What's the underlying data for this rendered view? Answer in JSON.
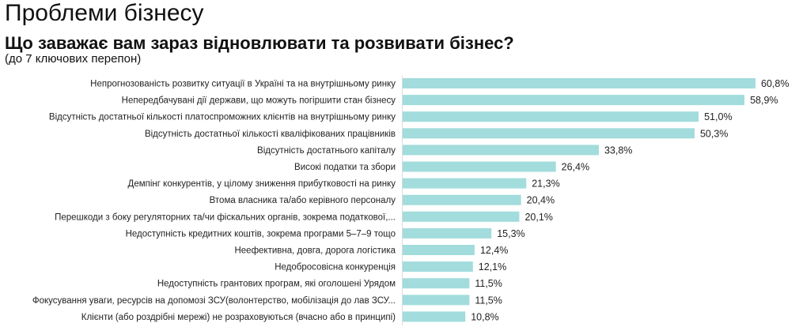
{
  "title": "Проблеми бізнесу",
  "subtitle": "Що заважає вам зараз відновлювати та розвивати бізнес?",
  "note": "(до 7 ключових перепон)",
  "chart_data": {
    "type": "bar",
    "orientation": "horizontal",
    "title": "Що заважає вам зараз відновлювати та розвивати бізнес?",
    "bar_color": "#a2dcdc",
    "grid": false,
    "xlim": [
      0,
      65
    ],
    "categories": [
      "Непрогнозованість розвитку ситуації в Україні та на внутрішньому ринку",
      "Непередбачувані дії держави, що можуть погіршити стан бізнесу",
      "Відсутність достатньої кількості платоспроможних клієнтів на внутрішньому ринку",
      "Відсутність достатньої кількості кваліфікованих працівників",
      "Відсутність достатнього капіталу",
      "Високі податки та збори",
      "Демпінг конкурентів, у цілому зниження прибутковості на ринку",
      "Втома власника та/або керівного персоналу",
      "Перешкоди з боку регуляторних та/чи фіскальних органів, зокрема податкової,...",
      "Недоступність кредитних коштів, зокрема програми 5–7–9 тощо",
      "Неефективна, довга, дорога логістика",
      "Недобросовісна конкуренція",
      "Недоступність грантових програм, які оголошені Урядом",
      "Фокусування уваги, ресурсів на допомозі ЗСУ(волонтерство, мобілізація до лав ЗСУ...",
      "Клієнти (або роздрібні мережі) не розраховуються (вчасно або в принципі)"
    ],
    "values": [
      60.8,
      58.9,
      51.0,
      50.3,
      33.8,
      26.4,
      21.3,
      20.4,
      20.1,
      15.3,
      12.4,
      12.1,
      11.5,
      11.5,
      10.8
    ],
    "data_labels": [
      "60,8%",
      "58,9%",
      "51,0%",
      "50,3%",
      "33,8%",
      "26,4%",
      "21,3%",
      "20,4%",
      "20,1%",
      "15,3%",
      "12,4%",
      "12,1%",
      "11,5%",
      "11,5%",
      "10,8%"
    ]
  }
}
